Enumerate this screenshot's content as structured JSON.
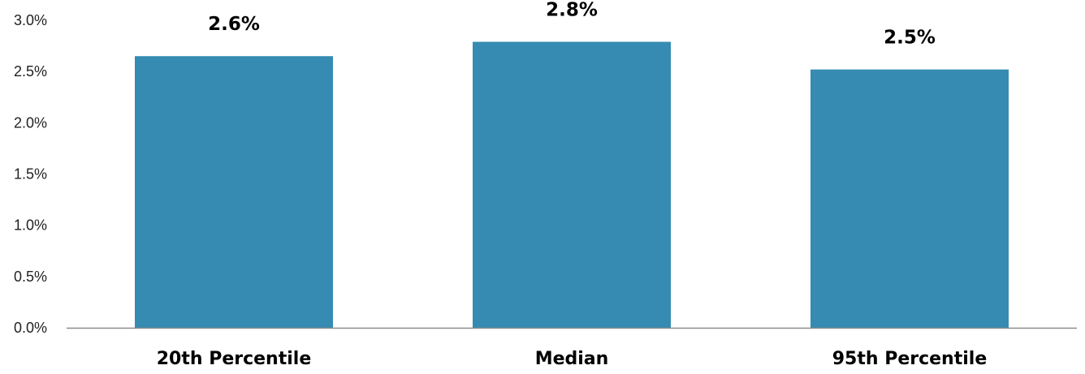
{
  "chart_data": {
    "type": "bar",
    "title": "",
    "xlabel": "",
    "ylabel": "",
    "categories": [
      "20th Percentile",
      "Median",
      "95th Percentile"
    ],
    "values": [
      2.65,
      2.79,
      2.52
    ],
    "data_labels": [
      "2.6%",
      "2.8%",
      "2.5%"
    ],
    "ylim": [
      0,
      3.0
    ],
    "yticks": [
      0,
      0.5,
      1.0,
      1.5,
      2.0,
      2.5,
      3.0
    ],
    "ytick_labels": [
      "0.0%",
      "0.5%",
      "1.0%",
      "1.5%",
      "2.0%",
      "2.5%",
      "3.0%"
    ],
    "grid": false,
    "legend": "none",
    "colors": {
      "bar": "#358bb2",
      "axis": "#8c8c8c"
    }
  }
}
